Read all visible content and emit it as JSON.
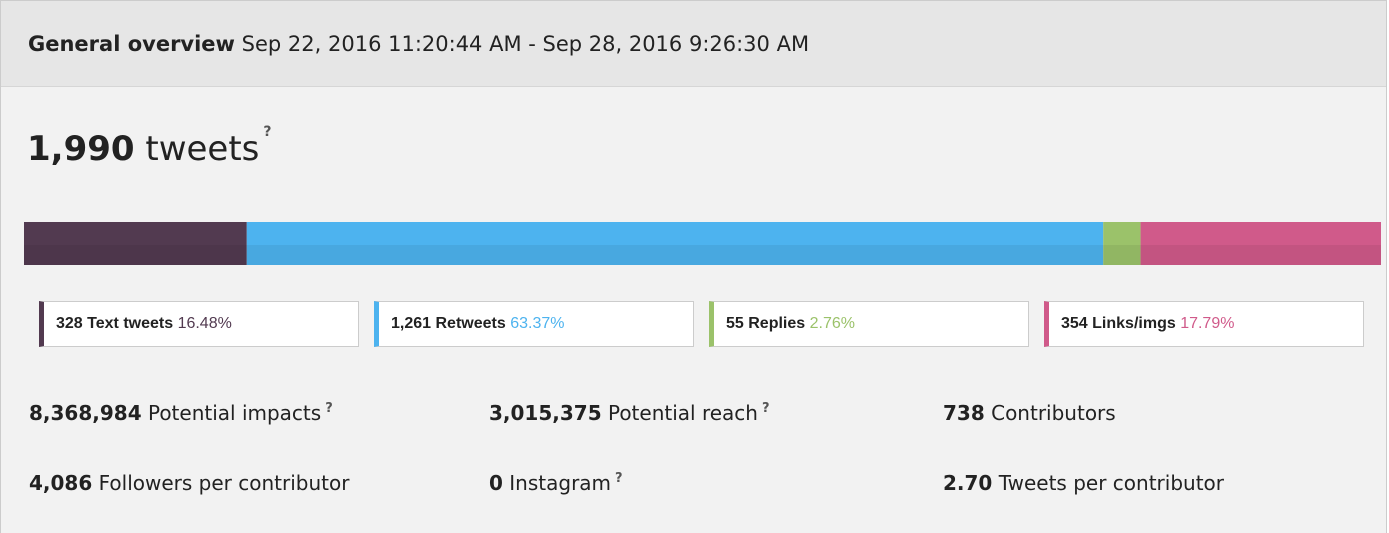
{
  "header": {
    "title": "General overview",
    "range": "Sep 22, 2016 11:20:44 AM - Sep 28, 2016 9:26:30 AM"
  },
  "total": {
    "value": "1,990",
    "label": "tweets",
    "help": "?"
  },
  "breakdown": {
    "items": [
      {
        "count": {
          "value": 328,
          "label": "328"
        },
        "name": "Text tweets",
        "percent": "16.48%",
        "color": "#523a50"
      },
      {
        "count": {
          "value": 1261,
          "label": "1,261"
        },
        "name": "Retweets",
        "percent": "63.37%",
        "color": "#4db3ef"
      },
      {
        "count": {
          "value": 55,
          "label": "55"
        },
        "name": "Replies",
        "percent": "2.76%",
        "color": "#9bc26a"
      },
      {
        "count": {
          "value": 354,
          "label": "354"
        },
        "name": "Links/imgs",
        "percent": "17.79%",
        "color": "#d05a8a"
      }
    ]
  },
  "stats": [
    {
      "value": "8,368,984",
      "label": "Potential impacts",
      "help": "?"
    },
    {
      "value": "3,015,375",
      "label": "Potential reach",
      "help": "?"
    },
    {
      "value": "738",
      "label": "Contributors"
    },
    {
      "value": "4,086",
      "label": "Followers per contributor"
    },
    {
      "value": "0",
      "label": "Instagram",
      "help": "?"
    },
    {
      "value": "2.70",
      "label": "Tweets per contributor"
    }
  ]
}
